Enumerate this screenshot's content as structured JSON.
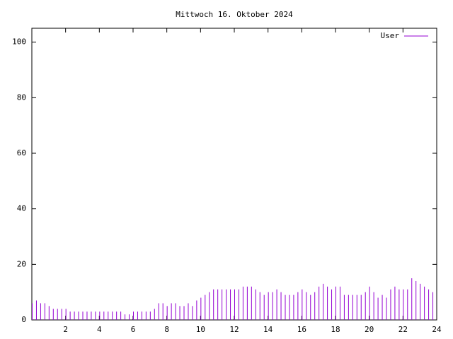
{
  "chart_data": {
    "type": "impulse",
    "title": "Mittwoch 16. Oktober 2024",
    "x": [
      0,
      0.25,
      0.5,
      0.75,
      1,
      1.25,
      1.5,
      1.75,
      2,
      2.25,
      2.5,
      2.75,
      3,
      3.25,
      3.5,
      3.75,
      4,
      4.25,
      4.5,
      4.75,
      5,
      5.25,
      5.5,
      5.75,
      6,
      6.25,
      6.5,
      6.75,
      7,
      7.25,
      7.5,
      7.75,
      8,
      8.25,
      8.5,
      8.75,
      9,
      9.25,
      9.5,
      9.75,
      10,
      10.25,
      10.5,
      10.75,
      11,
      11.25,
      11.5,
      11.75,
      12,
      12.25,
      12.5,
      12.75,
      13,
      13.25,
      13.5,
      13.75,
      14,
      14.25,
      14.5,
      14.75,
      15,
      15.25,
      15.5,
      15.75,
      16,
      16.25,
      16.5,
      16.75,
      17,
      17.25,
      17.5,
      17.75,
      18,
      18.25,
      18.5,
      18.75,
      19,
      19.25,
      19.5,
      19.75,
      20,
      20.25,
      20.5,
      20.75,
      21,
      21.25,
      21.5,
      21.75,
      22,
      22.25,
      22.5,
      22.75,
      23,
      23.25,
      23.5,
      23.75
    ],
    "series": [
      {
        "name": "User",
        "color": "#9400d3",
        "values": [
          6,
          7,
          6,
          6,
          5,
          4,
          4,
          4,
          4,
          3,
          3,
          3,
          3,
          3,
          3,
          3,
          3,
          3,
          3,
          3,
          3,
          3,
          2,
          2,
          3,
          3,
          3,
          3,
          3,
          4,
          6,
          6,
          5,
          6,
          6,
          5,
          5,
          6,
          5,
          7,
          8,
          9,
          10,
          11,
          11,
          11,
          11,
          11,
          11,
          11,
          12,
          12,
          12,
          11,
          10,
          9,
          10,
          10,
          11,
          10,
          9,
          9,
          9,
          10,
          11,
          10,
          9,
          10,
          12,
          13,
          12,
          11,
          12,
          12,
          9,
          9,
          9,
          9,
          9,
          10,
          12,
          10,
          8,
          9,
          8,
          11,
          12,
          11,
          11,
          11,
          15,
          14,
          13,
          12,
          11,
          10
        ]
      }
    ],
    "xlim": [
      0,
      24
    ],
    "xticks": [
      2,
      4,
      6,
      8,
      10,
      12,
      14,
      16,
      18,
      20,
      22,
      24
    ],
    "ylim": [
      0,
      105
    ],
    "yticks": [
      0,
      20,
      40,
      60,
      80,
      100
    ],
    "legend": "top-right",
    "grid": false
  }
}
